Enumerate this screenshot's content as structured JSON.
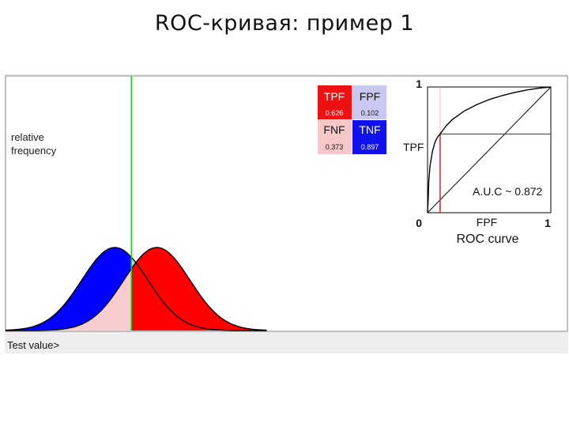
{
  "slide": {
    "title": "ROC-кривая: пример 1"
  },
  "chart_data": {
    "type": "line",
    "threshold": 0.5,
    "distributions": {
      "xlabel": "Test value>",
      "ylabel_line1": "relative",
      "ylabel_line2": "frequency",
      "negative": {
        "mean": 0,
        "sd": 1,
        "color": "#0000ff"
      },
      "positive": {
        "mean": 1.27,
        "sd": 1,
        "color": "#ff0000"
      }
    },
    "table": {
      "tpf": {
        "label": "TPF",
        "value": "0.626",
        "color": "#ee1111"
      },
      "fpf": {
        "label": "FPF",
        "value": "0.102",
        "color": "#c8c8f0"
      },
      "fnf": {
        "label": "FNF",
        "value": "0.373",
        "color": "#f8c8c8"
      },
      "tnf": {
        "label": "TNF",
        "value": "0.897",
        "color": "#1111ee"
      }
    },
    "roc": {
      "title": "ROC curve",
      "xlabel": "FPF",
      "ylabel": "TPF",
      "x_min_label": "0",
      "x_max_label": "1",
      "y_max_label": "1",
      "auc_label": "A.U.C ~ 0.872",
      "xlim": [
        0,
        1
      ],
      "ylim": [
        0,
        1
      ],
      "operating_point": {
        "fpf": 0.102,
        "tpf": 0.626
      },
      "curve": [
        [
          0,
          0
        ],
        [
          0.005,
          0.1
        ],
        [
          0.01,
          0.25
        ],
        [
          0.02,
          0.37
        ],
        [
          0.04,
          0.49
        ],
        [
          0.06,
          0.56
        ],
        [
          0.08,
          0.6
        ],
        [
          0.102,
          0.626
        ],
        [
          0.15,
          0.69
        ],
        [
          0.2,
          0.74
        ],
        [
          0.3,
          0.81
        ],
        [
          0.4,
          0.86
        ],
        [
          0.5,
          0.9
        ],
        [
          0.6,
          0.93
        ],
        [
          0.7,
          0.955
        ],
        [
          0.8,
          0.975
        ],
        [
          0.9,
          0.99
        ],
        [
          1,
          1
        ]
      ]
    }
  }
}
